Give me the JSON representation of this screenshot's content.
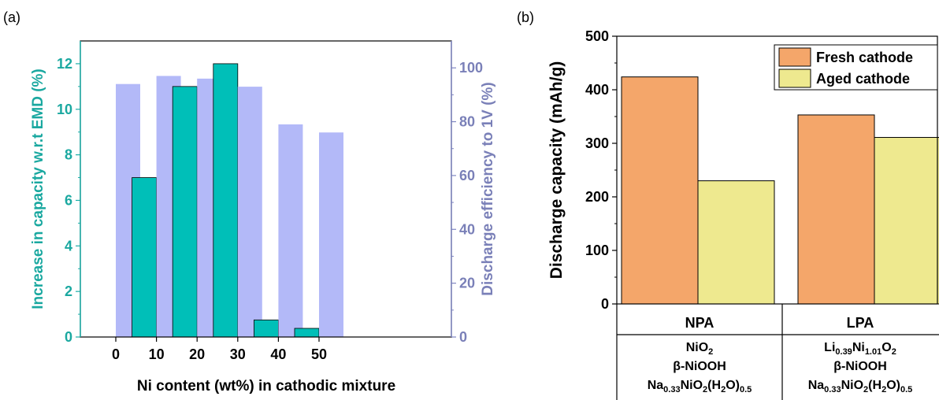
{
  "panel_a": {
    "label": "(a)",
    "xlabel": "Ni content (wt%) in cathodic mixture",
    "ylabel_left": "Increase in capacity w.r.t EMD (%)",
    "ylabel_right": "Discharge efficiency to 1V (%)"
  },
  "panel_b": {
    "label": "(b)",
    "ylabel": "Discharge capacity (mAh/g)",
    "groups": [
      "NPA",
      "LPA"
    ]
  },
  "chart_data": [
    {
      "type": "bar",
      "categories": [
        "0",
        "10",
        "20",
        "30",
        "40",
        "50"
      ],
      "series": [
        {
          "axis": "left",
          "color": "#00BFB8",
          "values": [
            0,
            7,
            11,
            12,
            0.75,
            0.38
          ]
        },
        {
          "axis": "right",
          "color": "#B3B9F8",
          "values": [
            94,
            97,
            96,
            93,
            79,
            76
          ]
        }
      ],
      "xlabel": "Ni content (wt%) in cathodic mixture",
      "ylabel": "Increase in capacity w.r.t EMD (%)",
      "y2label": "Discharge efficiency to 1V (%)",
      "ylim": [
        0,
        13
      ],
      "y2lim": [
        0,
        110
      ],
      "yticks": [
        0,
        2,
        4,
        6,
        8,
        10,
        12
      ],
      "y2ticks": [
        0,
        20,
        40,
        60,
        80,
        100
      ]
    },
    {
      "type": "bar",
      "categories": [
        "NPA",
        "LPA"
      ],
      "series": [
        {
          "name": "Fresh cathode",
          "color": "#F4A66A",
          "values": [
            424,
            353
          ]
        },
        {
          "name": "Aged cathode",
          "color": "#EEE98F",
          "values": [
            230,
            311
          ]
        }
      ],
      "ylabel": "Discharge capacity (mAh/g)",
      "ylim": [
        0,
        500
      ],
      "yticks": [
        0,
        100,
        200,
        300,
        400,
        500
      ],
      "legend": "top-right",
      "table_rows": [
        [
          "NiO2",
          "Li0.39Ni1.01O2"
        ],
        [
          "β-NiOOH",
          "β-NiOOH"
        ],
        [
          "Na0.33NiO2(H2O)0.5",
          "Na0.33NiO2(H2O)0.5"
        ]
      ]
    }
  ]
}
